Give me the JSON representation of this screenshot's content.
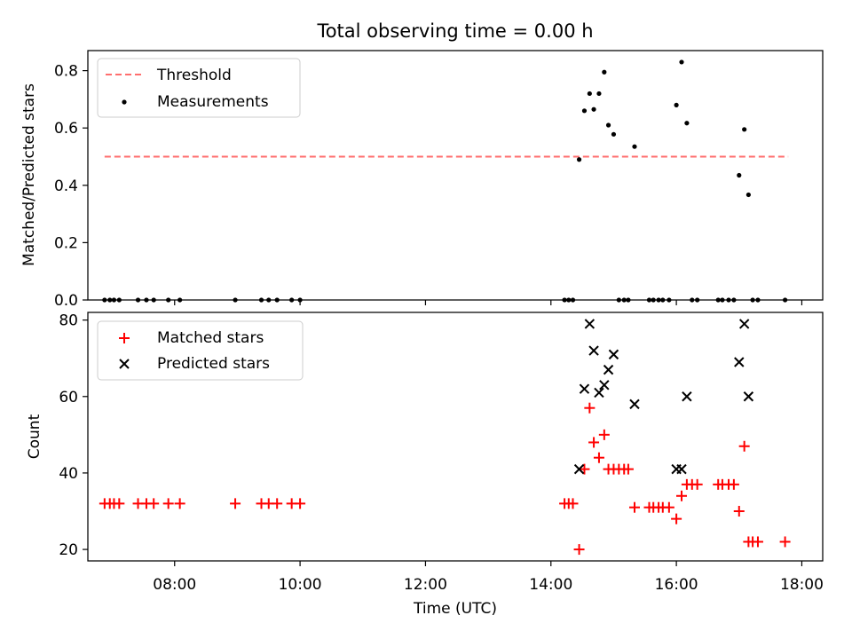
{
  "title": "Total observing time = 0.00 h",
  "xlabel": "Time (UTC)",
  "x_tick_labels": [
    "08:00",
    "10:00",
    "12:00",
    "14:00",
    "16:00",
    "18:00"
  ],
  "colors": {
    "threshold": "#ff6e6e",
    "matched": "#ff0000",
    "measurement": "#000000",
    "predicted": "#000000"
  },
  "chart_data": [
    {
      "type": "scatter",
      "title": "Total observing time = 0.00 h",
      "ylabel": "Matched/Predicted stars",
      "xlim": [
        "06:37",
        "18:20"
      ],
      "ylim": [
        0,
        0.87
      ],
      "y_tick_labels": [
        "0.0",
        "0.2",
        "0.4",
        "0.6",
        "0.8"
      ],
      "legend_position": "top-left",
      "threshold": {
        "label": "Threshold",
        "value": 0.5,
        "x_range": [
          "06:53",
          "17:47"
        ],
        "style": "dashed"
      },
      "series": [
        {
          "name": "Measurements",
          "marker": "dot",
          "points": [
            [
              "06:53",
              0
            ],
            [
              "06:58",
              0
            ],
            [
              "07:02",
              0
            ],
            [
              "07:07",
              0
            ],
            [
              "07:25",
              0
            ],
            [
              "07:33",
              0
            ],
            [
              "07:40",
              0
            ],
            [
              "07:54",
              0
            ],
            [
              "08:05",
              0
            ],
            [
              "08:58",
              0
            ],
            [
              "09:23",
              0
            ],
            [
              "09:30",
              0
            ],
            [
              "09:38",
              0
            ],
            [
              "09:52",
              0
            ],
            [
              "10:00",
              0
            ],
            [
              "14:13",
              0
            ],
            [
              "14:17",
              0
            ],
            [
              "14:21",
              0
            ],
            [
              "14:27",
              0.49
            ],
            [
              "14:32",
              0.66
            ],
            [
              "14:37",
              0.72
            ],
            [
              "14:41",
              0.665
            ],
            [
              "14:46",
              0.72
            ],
            [
              "14:51",
              0.795
            ],
            [
              "14:55",
              0.61
            ],
            [
              "15:00",
              0.578
            ],
            [
              "15:05",
              0
            ],
            [
              "15:10",
              0
            ],
            [
              "15:14",
              0
            ],
            [
              "15:20",
              0.535
            ],
            [
              "15:34",
              0
            ],
            [
              "15:38",
              0
            ],
            [
              "15:43",
              0
            ],
            [
              "15:47",
              0
            ],
            [
              "15:53",
              0
            ],
            [
              "16:00",
              0.68
            ],
            [
              "16:05",
              0.83
            ],
            [
              "16:10",
              0.617
            ],
            [
              "16:15",
              0
            ],
            [
              "16:20",
              0
            ],
            [
              "16:40",
              0
            ],
            [
              "16:44",
              0
            ],
            [
              "16:50",
              0
            ],
            [
              "16:55",
              0
            ],
            [
              "17:00",
              0.435
            ],
            [
              "17:05",
              0.595
            ],
            [
              "17:09",
              0.367
            ],
            [
              "17:13",
              0
            ],
            [
              "17:18",
              0
            ],
            [
              "17:44",
              0
            ]
          ]
        }
      ]
    },
    {
      "type": "scatter",
      "ylabel": "Count",
      "xlabel": "Time (UTC)",
      "xlim": [
        "06:37",
        "18:20"
      ],
      "ylim": [
        17,
        82
      ],
      "y_tick_labels": [
        "20",
        "40",
        "60",
        "80"
      ],
      "legend_position": "top-left",
      "series": [
        {
          "name": "Matched stars",
          "marker": "plus",
          "points": [
            [
              "06:53",
              32
            ],
            [
              "06:58",
              32
            ],
            [
              "07:02",
              32
            ],
            [
              "07:07",
              32
            ],
            [
              "07:25",
              32
            ],
            [
              "07:33",
              32
            ],
            [
              "07:40",
              32
            ],
            [
              "07:54",
              32
            ],
            [
              "08:05",
              32
            ],
            [
              "08:58",
              32
            ],
            [
              "09:23",
              32
            ],
            [
              "09:30",
              32
            ],
            [
              "09:38",
              32
            ],
            [
              "09:52",
              32
            ],
            [
              "10:00",
              32
            ],
            [
              "14:13",
              32
            ],
            [
              "14:17",
              32
            ],
            [
              "14:21",
              32
            ],
            [
              "14:27",
              20
            ],
            [
              "14:32",
              41
            ],
            [
              "14:37",
              57
            ],
            [
              "14:41",
              48
            ],
            [
              "14:46",
              44
            ],
            [
              "14:51",
              50
            ],
            [
              "14:55",
              41
            ],
            [
              "15:00",
              41
            ],
            [
              "15:05",
              41
            ],
            [
              "15:10",
              41
            ],
            [
              "15:14",
              41
            ],
            [
              "15:20",
              31
            ],
            [
              "15:34",
              31
            ],
            [
              "15:38",
              31
            ],
            [
              "15:43",
              31
            ],
            [
              "15:47",
              31
            ],
            [
              "15:53",
              31
            ],
            [
              "16:00",
              28
            ],
            [
              "16:05",
              34
            ],
            [
              "16:10",
              37
            ],
            [
              "16:15",
              37
            ],
            [
              "16:20",
              37
            ],
            [
              "16:40",
              37
            ],
            [
              "16:44",
              37
            ],
            [
              "16:50",
              37
            ],
            [
              "16:55",
              37
            ],
            [
              "17:00",
              30
            ],
            [
              "17:05",
              47
            ],
            [
              "17:09",
              22
            ],
            [
              "17:13",
              22
            ],
            [
              "17:18",
              22
            ],
            [
              "17:44",
              22
            ]
          ]
        },
        {
          "name": "Predicted stars",
          "marker": "x",
          "points": [
            [
              "14:27",
              41
            ],
            [
              "14:32",
              62
            ],
            [
              "14:37",
              79
            ],
            [
              "14:41",
              72
            ],
            [
              "14:46",
              61
            ],
            [
              "14:51",
              63
            ],
            [
              "14:55",
              67
            ],
            [
              "15:00",
              71
            ],
            [
              "15:20",
              58
            ],
            [
              "16:00",
              41
            ],
            [
              "16:05",
              41
            ],
            [
              "16:10",
              60
            ],
            [
              "17:00",
              69
            ],
            [
              "17:05",
              79
            ],
            [
              "17:09",
              60
            ]
          ]
        }
      ]
    }
  ]
}
